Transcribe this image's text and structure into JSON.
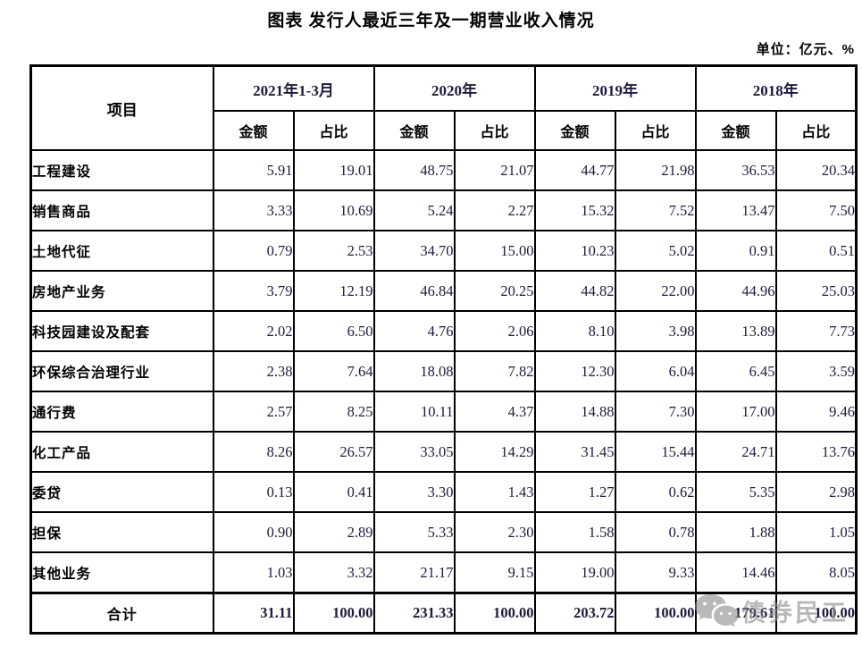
{
  "title": "图表 发行人最近三年及一期营业收入情况",
  "unit_label": "单位：亿元、%",
  "watermark": {
    "text": "债券民工",
    "icon": "wechat-icon",
    "color": "#8f8f8f"
  },
  "colors": {
    "number_text": "#1c1c3a",
    "label_text": "#000000",
    "border": "#000000"
  },
  "chart_data": {
    "type": "table",
    "title": "图表 发行人最近三年及一期营业收入情况",
    "unit": "亿元、%",
    "item_header": "项目",
    "column_groups": [
      "2021年1-3月",
      "2020年",
      "2019年",
      "2018年"
    ],
    "sub_headers": [
      "金额",
      "占比"
    ],
    "rows": [
      {
        "item": "工程建设",
        "values": [
          "5.91",
          "19.01",
          "48.75",
          "21.07",
          "44.77",
          "21.98",
          "36.53",
          "20.34"
        ]
      },
      {
        "item": "销售商品",
        "values": [
          "3.33",
          "10.69",
          "5.24",
          "2.27",
          "15.32",
          "7.52",
          "13.47",
          "7.50"
        ]
      },
      {
        "item": "土地代征",
        "values": [
          "0.79",
          "2.53",
          "34.70",
          "15.00",
          "10.23",
          "5.02",
          "0.91",
          "0.51"
        ]
      },
      {
        "item": "房地产业务",
        "values": [
          "3.79",
          "12.19",
          "46.84",
          "20.25",
          "44.82",
          "22.00",
          "44.96",
          "25.03"
        ]
      },
      {
        "item": "科技园建设及配套",
        "values": [
          "2.02",
          "6.50",
          "4.76",
          "2.06",
          "8.10",
          "3.98",
          "13.89",
          "7.73"
        ]
      },
      {
        "item": "环保综合治理行业",
        "values": [
          "2.38",
          "7.64",
          "18.08",
          "7.82",
          "12.30",
          "6.04",
          "6.45",
          "3.59"
        ]
      },
      {
        "item": "通行费",
        "values": [
          "2.57",
          "8.25",
          "10.11",
          "4.37",
          "14.88",
          "7.30",
          "17.00",
          "9.46"
        ]
      },
      {
        "item": "化工产品",
        "values": [
          "8.26",
          "26.57",
          "33.05",
          "14.29",
          "31.45",
          "15.44",
          "24.71",
          "13.76"
        ]
      },
      {
        "item": "委贷",
        "values": [
          "0.13",
          "0.41",
          "3.30",
          "1.43",
          "1.27",
          "0.62",
          "5.35",
          "2.98"
        ]
      },
      {
        "item": "担保",
        "values": [
          "0.90",
          "2.89",
          "5.33",
          "2.30",
          "1.58",
          "0.78",
          "1.88",
          "1.05"
        ]
      },
      {
        "item": "其他业务",
        "values": [
          "1.03",
          "3.32",
          "21.17",
          "9.15",
          "19.00",
          "9.33",
          "14.46",
          "8.05"
        ]
      }
    ],
    "total_row": {
      "item": "合计",
      "values": [
        "31.11",
        "100.00",
        "231.33",
        "100.00",
        "203.72",
        "100.00",
        "179.61",
        "100.00"
      ]
    }
  }
}
